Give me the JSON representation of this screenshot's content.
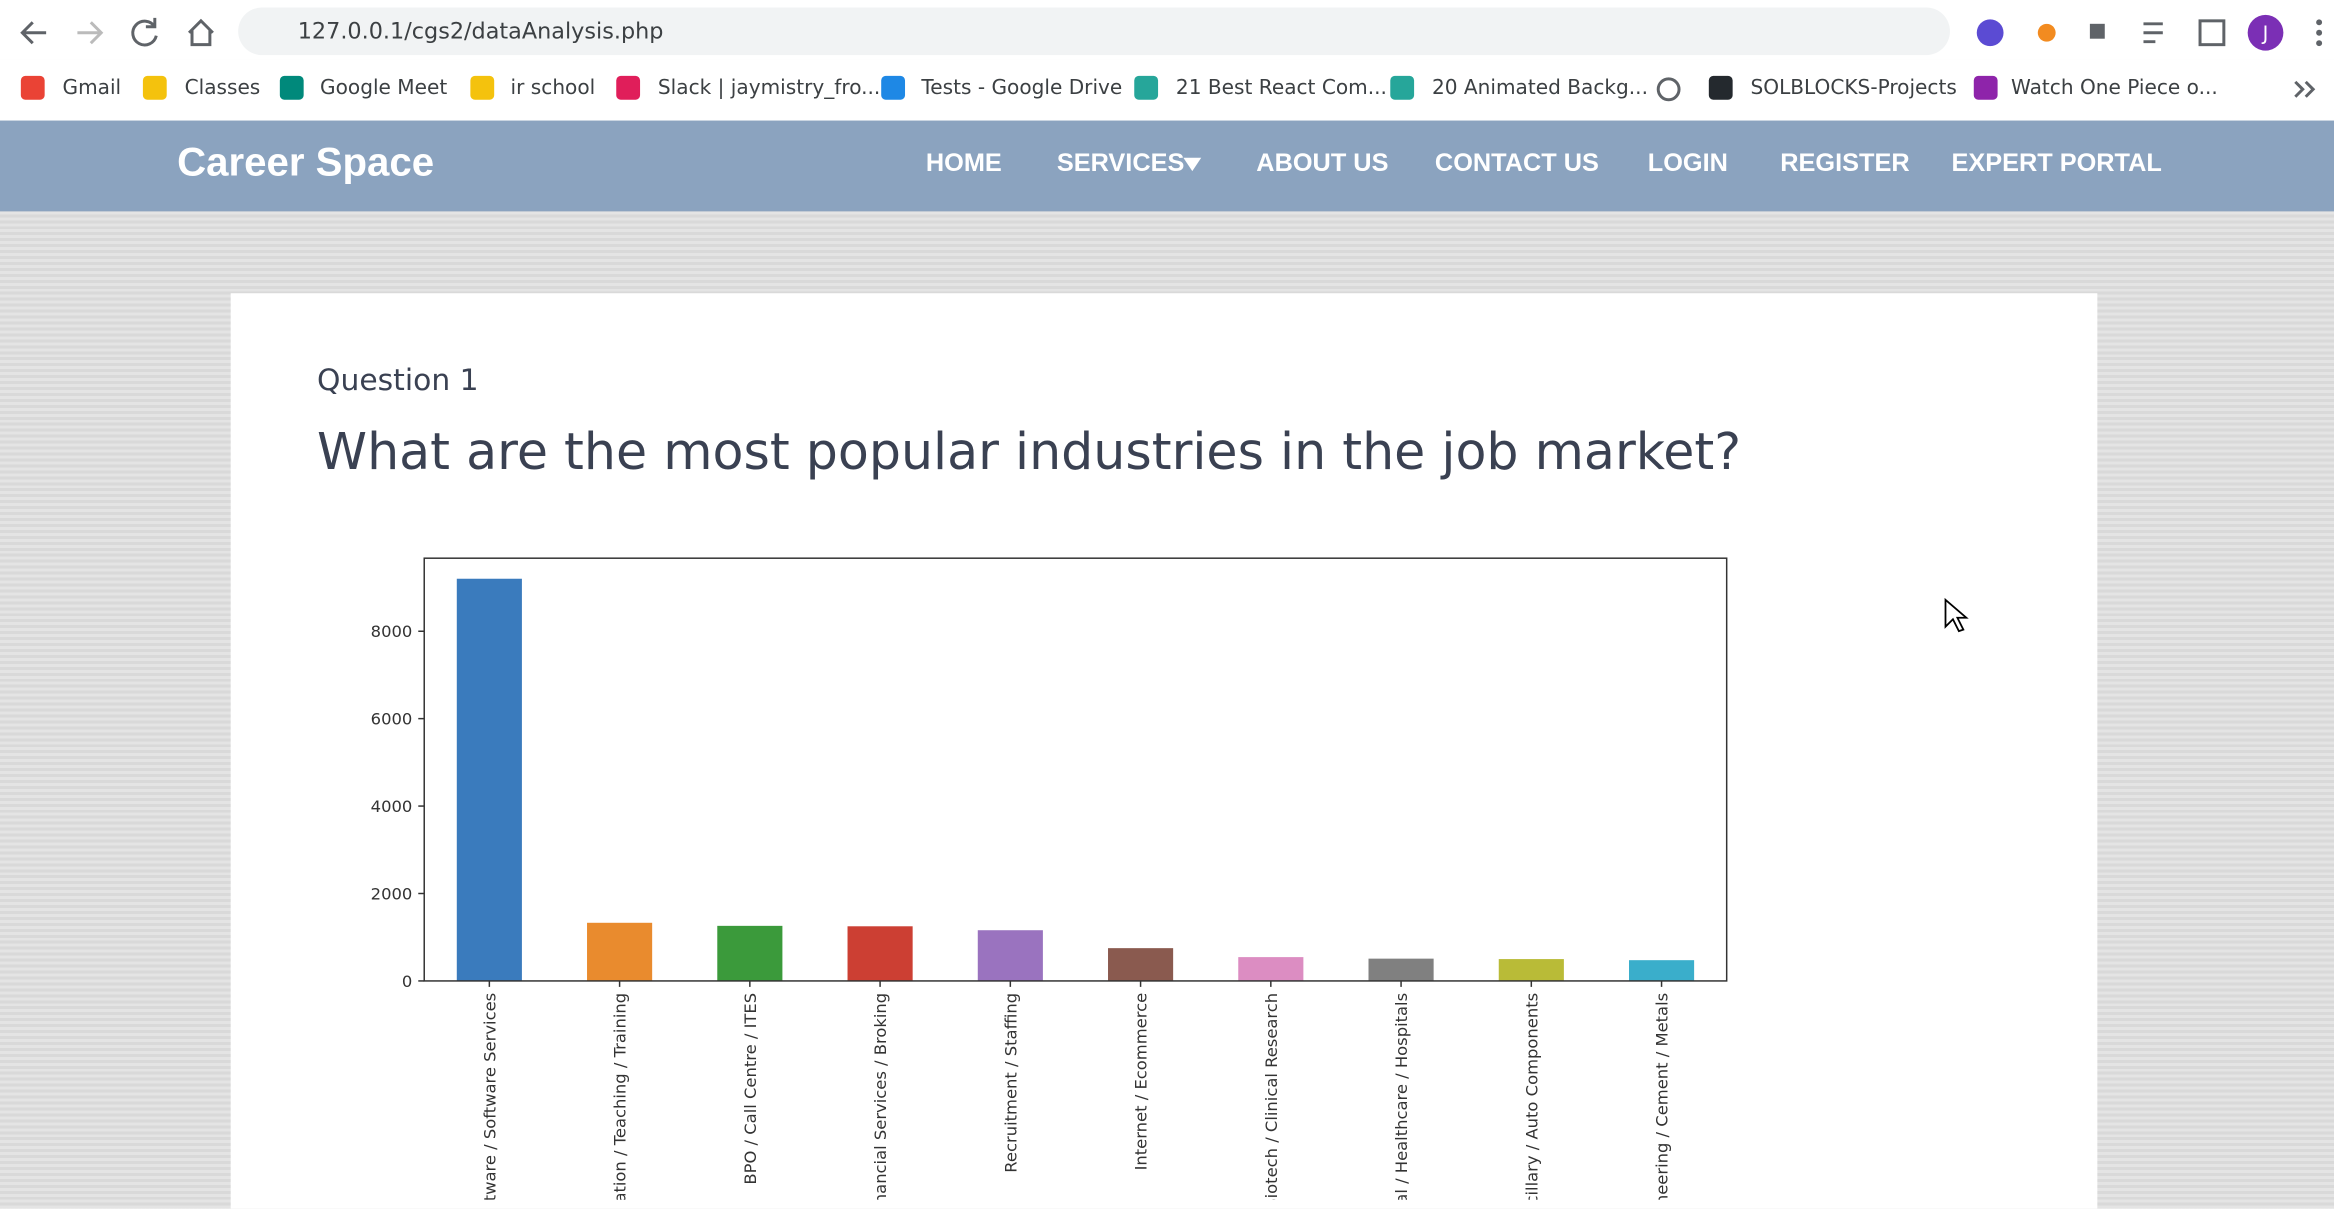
{
  "browser": {
    "url": "127.0.0.1/cgs2/dataAnalysis.php",
    "profile": "J",
    "bookmarks": [
      "Gmail",
      "Classes",
      "Google Meet",
      "ir school",
      "Slack | jaymistry_fro...",
      "Tests - Google Drive",
      "21 Best React Com...",
      "20 Animated Backg...",
      "SOLBLOCKS-Projects",
      "Watch One Piece o..."
    ]
  },
  "navbar": {
    "brand": "Career Space",
    "links": [
      "HOME",
      "SERVICES",
      "ABOUT US",
      "CONTACT US",
      "LOGIN",
      "REGISTER",
      "EXPERT PORTAL"
    ]
  },
  "question": {
    "label": "Question 1",
    "title": "What are the most popular industries in the job market?"
  },
  "chart_data": {
    "type": "bar",
    "categories": [
      "ftware / Software Services",
      "cation / Teaching / Training",
      "BPO / Call Centre / ITES",
      "inancial Services / Broking",
      "Recruitment / Staffing",
      "Internet / Ecommerce",
      "Biotech / Clinical Research",
      "cal / Healthcare / Hospitals",
      "ncillary / Auto Components",
      "ineering / Cement / Metals"
    ],
    "values": [
      9200,
      1330,
      1260,
      1250,
      1160,
      750,
      545,
      510,
      500,
      475
    ],
    "colors": [
      "#3a7bbd",
      "#e98b2e",
      "#3b9a3b",
      "#cc3f33",
      "#9a73bf",
      "#8a5a4f",
      "#dc8dc2",
      "#808080",
      "#b9bb37",
      "#3aaecb"
    ],
    "ylim": [
      0,
      9670
    ],
    "yticks": [
      0,
      2000,
      4000,
      6000,
      8000
    ]
  }
}
